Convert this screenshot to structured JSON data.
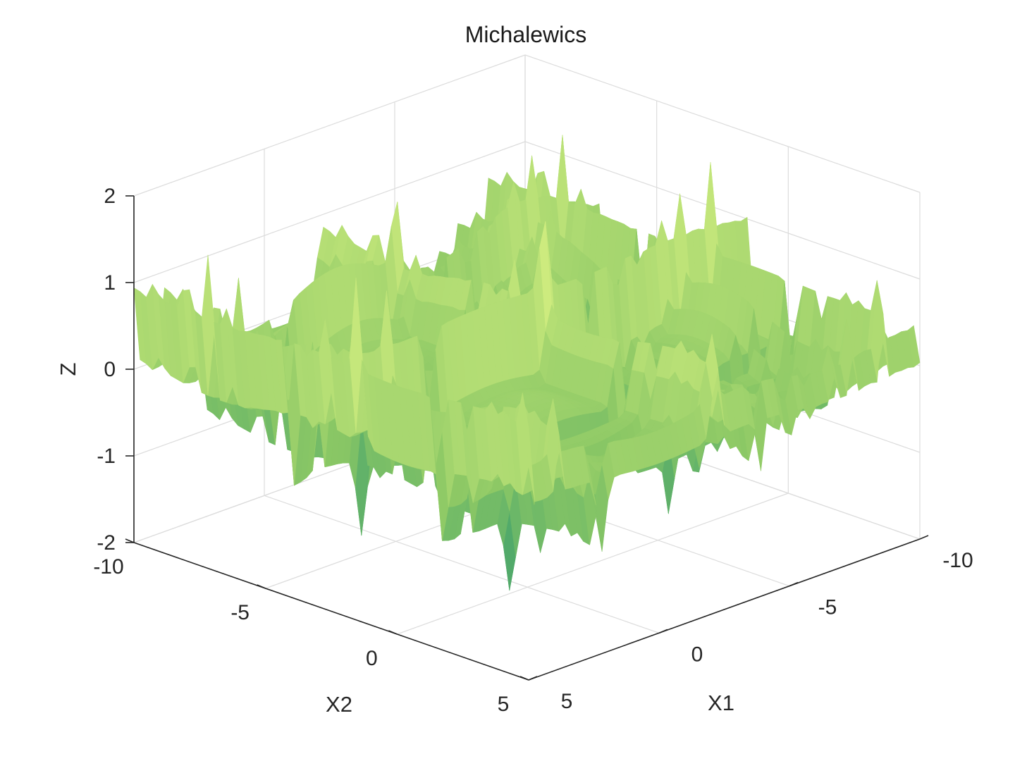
{
  "chart_data": {
    "type": "surface",
    "title": "Michalewics",
    "xlabel": "X1",
    "ylabel": "X2",
    "zlabel": "Z",
    "xlim": [
      -10,
      5
    ],
    "ylim": [
      -10,
      5
    ],
    "zlim": [
      -2,
      2
    ],
    "x_ticks": [
      "-10",
      "-5",
      "0",
      "5"
    ],
    "y_ticks": [
      "-10",
      "-5",
      "0",
      "5"
    ],
    "z_ticks": [
      "-2",
      "-1",
      "0",
      "1",
      "2"
    ],
    "function": "z = -sum_i sin(x_i) * sin(i * x_i^2 / pi)^20 (sign-mirrored, oscillating)",
    "grid": true,
    "colormap": "summer",
    "colors": {
      "low": "#1f8f6f",
      "mid": "#8cc865",
      "high": "#f2ff8c"
    }
  }
}
